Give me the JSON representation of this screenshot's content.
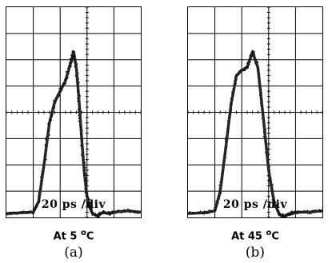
{
  "chart_data": [
    {
      "type": "line",
      "id": "a",
      "panel_label": "(a)",
      "condition": {
        "prefix": "At 5 ",
        "degree": "o",
        "unit": "C"
      },
      "timebase": "20 ps /div",
      "grid": {
        "divisions_x": 5,
        "divisions_y": 8,
        "shown": true
      },
      "xlim": [
        0,
        5
      ],
      "ylim": [
        0,
        8
      ],
      "x": [
        0,
        0.6,
        1.0,
        1.2,
        1.4,
        1.6,
        1.8,
        2.0,
        2.2,
        2.4,
        2.5,
        2.6,
        2.7,
        2.8,
        2.9,
        3.0,
        3.1,
        3.2,
        3.4,
        3.6,
        3.8,
        4.0,
        4.5,
        5.0
      ],
      "y": [
        0.15,
        0.18,
        0.2,
        0.6,
        2.0,
        3.6,
        4.4,
        4.8,
        5.2,
        5.9,
        6.3,
        5.7,
        4.5,
        3.0,
        1.7,
        0.8,
        0.4,
        0.15,
        0.05,
        0.2,
        0.15,
        0.2,
        0.25,
        0.2
      ],
      "color": "#2a2a2a"
    },
    {
      "type": "line",
      "id": "b",
      "panel_label": "(b)",
      "condition": {
        "prefix": "At 45 ",
        "degree": "o",
        "unit": "C"
      },
      "timebase": "20 ps /div",
      "grid": {
        "divisions_x": 5,
        "divisions_y": 8,
        "shown": true
      },
      "xlim": [
        0,
        5
      ],
      "ylim": [
        0,
        8
      ],
      "x": [
        0,
        0.6,
        1.0,
        1.2,
        1.4,
        1.6,
        1.8,
        2.0,
        2.2,
        2.4,
        2.6,
        2.8,
        3.0,
        3.2,
        3.4,
        3.6,
        3.8,
        4.0,
        4.5,
        5.0
      ],
      "y": [
        0.15,
        0.18,
        0.25,
        1.0,
        2.6,
        4.3,
        5.4,
        5.6,
        5.7,
        6.3,
        5.7,
        3.8,
        1.8,
        0.6,
        0.1,
        0.05,
        0.15,
        0.2,
        0.2,
        0.25
      ],
      "color": "#2a2a2a"
    }
  ]
}
